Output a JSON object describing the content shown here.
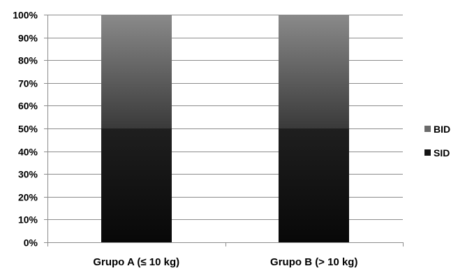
{
  "chart_data": {
    "type": "bar",
    "stacked": true,
    "categories": [
      "Grupo A (≤ 10 kg)",
      "Grupo B (> 10 kg)"
    ],
    "series": [
      {
        "name": "SID",
        "values": [
          50,
          50
        ],
        "color": "#141414"
      },
      {
        "name": "BID",
        "values": [
          50,
          50
        ],
        "color": "#6f6f6f"
      }
    ],
    "y_ticks": [
      "0%",
      "10%",
      "20%",
      "30%",
      "40%",
      "50%",
      "60%",
      "70%",
      "80%",
      "90%",
      "100%"
    ],
    "ylim": [
      0,
      100
    ],
    "grid": true,
    "legend": {
      "position": "right",
      "items": [
        "BID",
        "SID"
      ]
    }
  }
}
